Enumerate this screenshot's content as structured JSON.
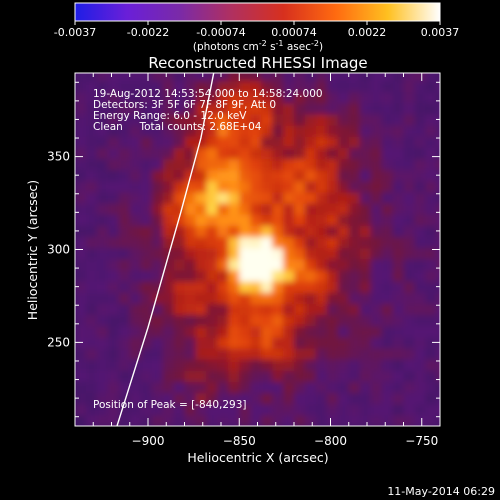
{
  "colorbar": {
    "ticks": [
      "-0.0037",
      "-0.0022",
      "-0.00074",
      "0.00074",
      "0.0022",
      "0.0037"
    ],
    "units_main": "(photons cm",
    "units_exp1": "-2",
    "units_mid": " s",
    "units_exp2": "-1",
    "units_tail": " asec",
    "units_exp3": "-2",
    "units_close": ")",
    "colors": [
      "#1e1ee6",
      "#6a1fd8",
      "#7a2aa8",
      "#b03060",
      "#d7301e",
      "#ff6a10",
      "#ffc020",
      "#ffffff"
    ]
  },
  "chart_data": {
    "type": "heatmap",
    "title": "Reconstructed RHESSI Image",
    "xlabel": "Heliocentric X (arcsec)",
    "ylabel": "Heliocentric Y (arcsec)",
    "xlim": [
      -940,
      -740
    ],
    "ylim": [
      205,
      395
    ],
    "xticks": [
      -900,
      -850,
      -800,
      -750
    ],
    "xtick_labels": [
      "−900",
      "−850",
      "−800",
      "−750"
    ],
    "yticks": [
      250,
      300,
      350
    ],
    "ytick_labels": [
      "250",
      "300",
      "350"
    ],
    "value_range": [
      -0.0037,
      0.0037
    ],
    "peak": {
      "x": -840,
      "y": 293
    },
    "annotations": [
      "19-Aug-2012 14:53:54.000 to 14:58:24.000",
      "Detectors: 3F 5F 6F 7F 8F 9F, Att 0",
      "Energy Range: 6.0 - 12.0 keV",
      "Clean     Total counts: 2.68E+04"
    ],
    "peak_label": "Position of Peak = [-840,293]",
    "limb": [
      [
        -917,
        205
      ],
      [
        -900,
        258
      ],
      [
        -882,
        320
      ],
      [
        -871,
        360
      ],
      [
        -864,
        395
      ]
    ],
    "grid": false
  },
  "footer": {
    "timestamp": "11-May-2014 06:29"
  }
}
